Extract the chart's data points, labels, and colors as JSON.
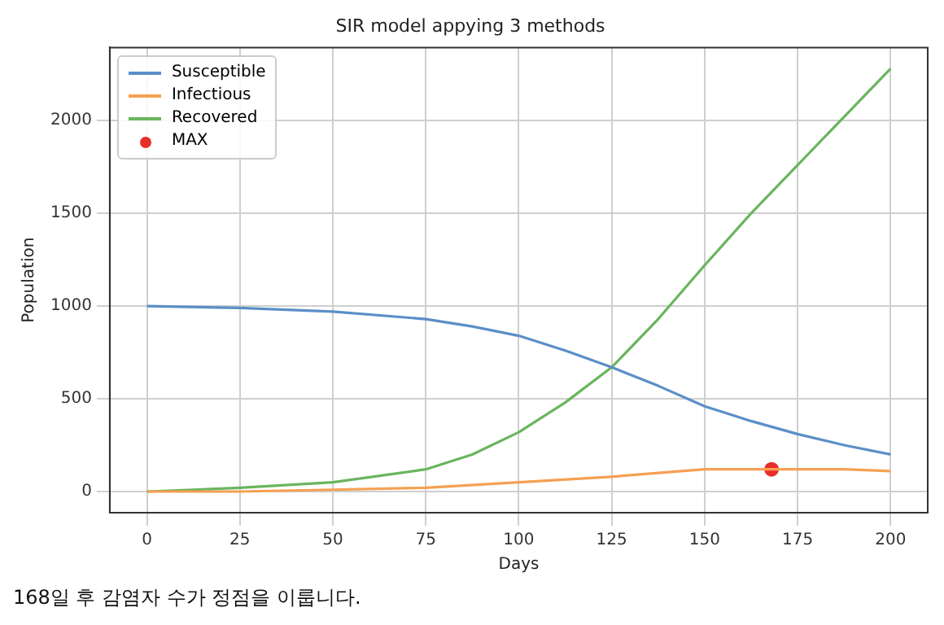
{
  "chart_data": {
    "type": "line",
    "title": "SIR model appying 3 methods",
    "xlabel": "Days",
    "ylabel": "Population",
    "xlim": [
      -10,
      210
    ],
    "xticks": [
      0,
      25,
      50,
      75,
      100,
      125,
      150,
      175,
      200
    ],
    "ylim": [
      -114,
      2394
    ],
    "yticks": [
      0,
      500,
      1000,
      1500,
      2000
    ],
    "grid": true,
    "legend": "top left",
    "marker": "none",
    "series": [
      {
        "name": "Susceptible",
        "color": "#5b8fc7",
        "x": [
          0,
          25,
          50,
          75,
          87.5,
          100,
          112.5,
          125,
          137.5,
          150,
          162.5,
          175,
          187.5,
          200
        ],
        "values": [
          1000,
          990,
          970,
          930,
          890,
          840,
          760,
          670,
          570,
          460,
          380,
          310,
          250,
          200
        ]
      },
      {
        "name": "Infectious",
        "color": "#f5a052",
        "x": [
          0,
          25,
          50,
          75,
          100,
          125,
          150,
          162.5,
          168,
          175,
          187.5,
          200
        ],
        "values": [
          0,
          0,
          10,
          20,
          50,
          80,
          120,
          120,
          120,
          120,
          120,
          110
        ]
      },
      {
        "name": "Recovered",
        "color": "#6ab55e",
        "x": [
          0,
          25,
          50,
          75,
          87.5,
          100,
          112.5,
          125,
          137.5,
          150,
          162.5,
          175,
          187.5,
          200
        ],
        "values": [
          0,
          20,
          50,
          120,
          200,
          320,
          480,
          670,
          930,
          1220,
          1500,
          1760,
          2020,
          2280
        ]
      },
      {
        "name": "MAX",
        "type": "scatter",
        "marker": "circle",
        "color": "#e8302a",
        "x": [
          168
        ],
        "values": [
          120
        ]
      }
    ],
    "annotations": [
      "168일 후 감염자 수가 정점을 이룹니다."
    ]
  }
}
